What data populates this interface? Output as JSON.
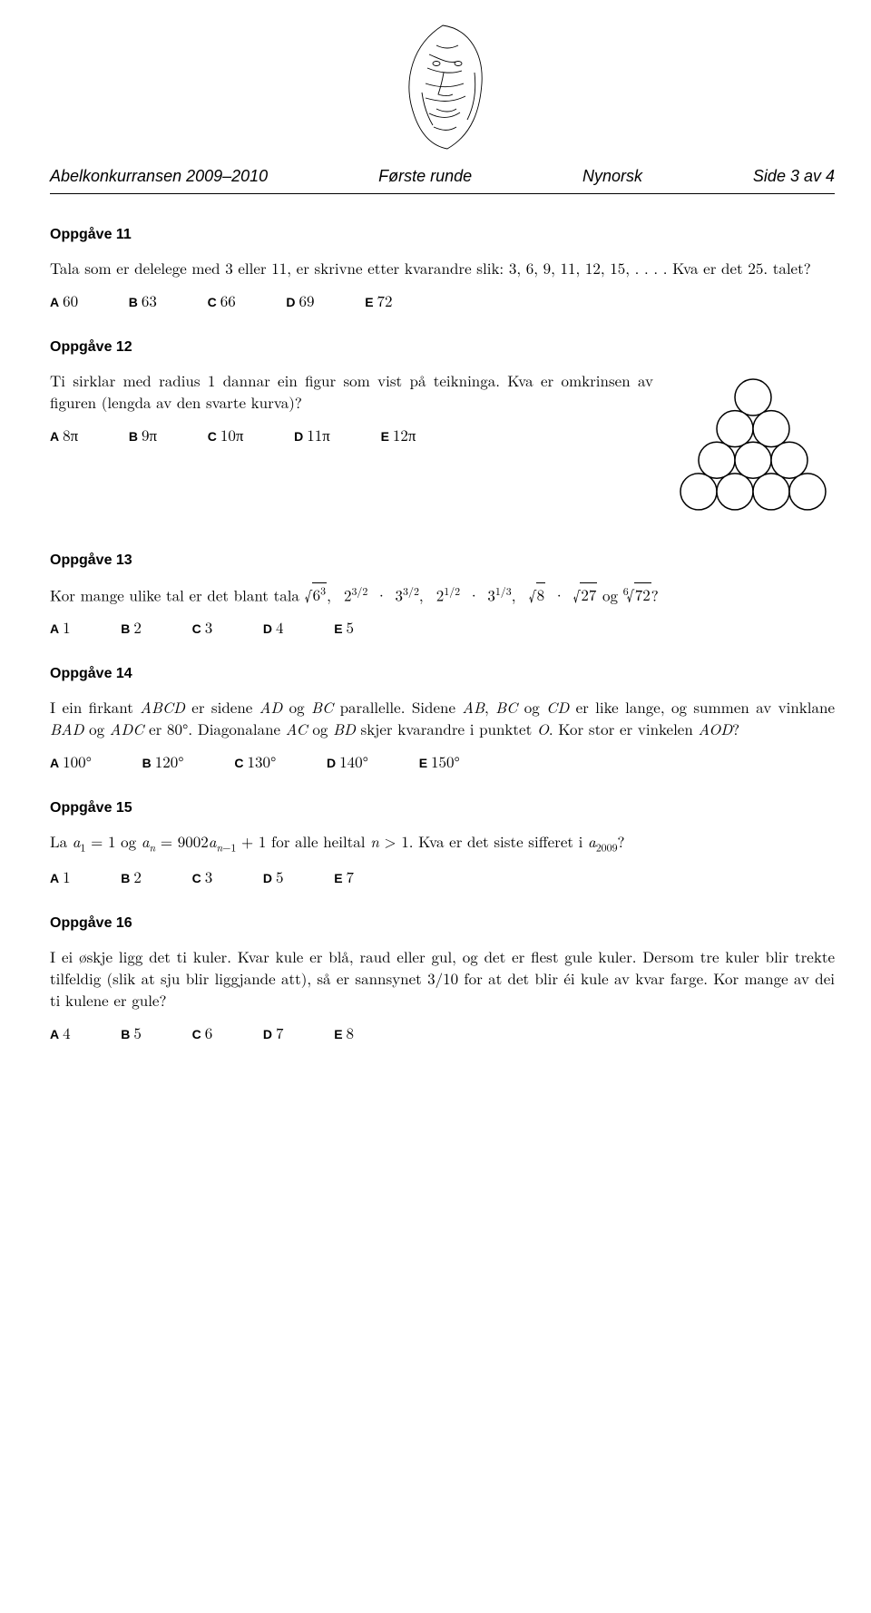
{
  "header": {
    "competition": "Abelkonkurransen 2009–2010",
    "round": "Første runde",
    "language": "Nynorsk",
    "page": "Side 3 av 4"
  },
  "logo": {
    "src_note": "abstract-face-illustration",
    "width": 130,
    "height": 150
  },
  "tasks": [
    {
      "id": 11,
      "title": "Oppgåve 11",
      "text": "Tala som er delelege med 3 eller 11, er skrivne etter kvarandre slik: 3, 6, 9, 11, 12, 15, . . . . Kva er det 25. talet?",
      "options": [
        {
          "letter": "A",
          "value": "60"
        },
        {
          "letter": "B",
          "value": "63"
        },
        {
          "letter": "C",
          "value": "66"
        },
        {
          "letter": "D",
          "value": "69"
        },
        {
          "letter": "E",
          "value": "72"
        }
      ]
    },
    {
      "id": 12,
      "title": "Oppgåve 12",
      "text": "Ti sirklar med radius 1 dannar ein figur som vist på teikninga. Kva er omkrinsen av figuren (lengda av den svarte kurva)?",
      "options": [
        {
          "letter": "A",
          "value": "8π"
        },
        {
          "letter": "B",
          "value": "9π"
        },
        {
          "letter": "C",
          "value": "10π"
        },
        {
          "letter": "D",
          "value": "11π"
        },
        {
          "letter": "E",
          "value": "12π"
        }
      ],
      "figure": {
        "type": "circle_triangle",
        "rows": [
          1,
          2,
          3,
          4
        ],
        "radius": 1,
        "stroke": "#000000",
        "fill": "#ffffff",
        "background": "#ffffff"
      }
    },
    {
      "id": 13,
      "title": "Oppgåve 13",
      "text_html": "Kor mange ulike tal er det blant tala √(6³),  2^(3/2) · 3^(3/2),  2^(1/2) · 3^(1/3),  √8 · √27 og ⁶√72?",
      "options": [
        {
          "letter": "A",
          "value": "1"
        },
        {
          "letter": "B",
          "value": "2"
        },
        {
          "letter": "C",
          "value": "3"
        },
        {
          "letter": "D",
          "value": "4"
        },
        {
          "letter": "E",
          "value": "5"
        }
      ]
    },
    {
      "id": 14,
      "title": "Oppgåve 14",
      "text_html": "I ein firkant ABCD er sidene AD og BC parallelle. Sidene AB, BC og CD er like lange, og summen av vinklane BAD og ADC er 80°. Diagonalane AC og BD skjer kvarandre i punktet O. Kor stor er vinkelen AOD?",
      "options": [
        {
          "letter": "A",
          "value": "100°"
        },
        {
          "letter": "B",
          "value": "120°"
        },
        {
          "letter": "C",
          "value": "130°"
        },
        {
          "letter": "D",
          "value": "140°"
        },
        {
          "letter": "E",
          "value": "150°"
        }
      ]
    },
    {
      "id": 15,
      "title": "Oppgåve 15",
      "text_html": "La a₁ = 1 og aₙ = 9002aₙ₋₁ + 1 for alle heiltal n > 1. Kva er det siste sifferet i a₂₀₀₉?",
      "options": [
        {
          "letter": "A",
          "value": "1"
        },
        {
          "letter": "B",
          "value": "2"
        },
        {
          "letter": "C",
          "value": "3"
        },
        {
          "letter": "D",
          "value": "5"
        },
        {
          "letter": "E",
          "value": "7"
        }
      ]
    },
    {
      "id": 16,
      "title": "Oppgåve 16",
      "text": "I ei øskje ligg det ti kuler. Kvar kule er blå, raud eller gul, og det er flest gule kuler. Dersom tre kuler blir trekte tilfeldig (slik at sju blir liggjande att), så er sannsynet 3/10 for at det blir éi kule av kvar farge. Kor mange av dei ti kulene er gule?",
      "options": [
        {
          "letter": "A",
          "value": "4"
        },
        {
          "letter": "B",
          "value": "5"
        },
        {
          "letter": "C",
          "value": "6"
        },
        {
          "letter": "D",
          "value": "7"
        },
        {
          "letter": "E",
          "value": "8"
        }
      ]
    }
  ]
}
